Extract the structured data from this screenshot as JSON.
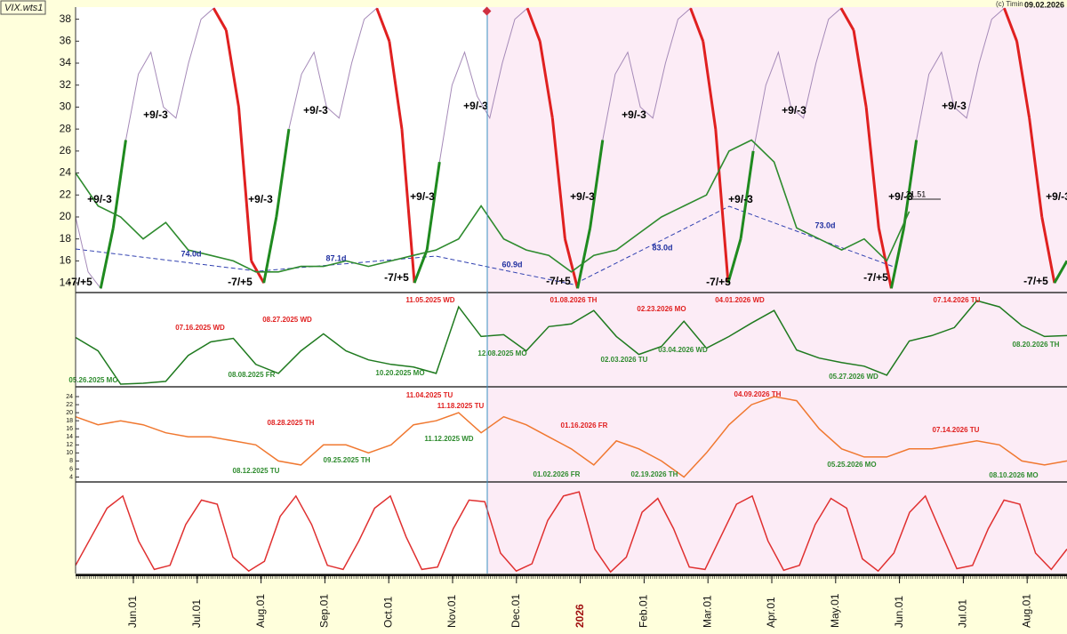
{
  "header": {
    "symbol": "VIX.wts1",
    "copyright": "(c) Timin",
    "date": "09.02.2026"
  },
  "time_axis": {
    "labels": [
      "Jun.01",
      "Jul.01",
      "Aug.01",
      "Sep.01",
      "Oct.01",
      "Nov.01",
      "Dec.01",
      "2026",
      "Feb.01",
      "Mar.01",
      "Apr.01",
      "May.01",
      "Jun.01",
      "Jul.01",
      "Aug.01"
    ]
  },
  "chart_data": [
    {
      "type": "line",
      "ylim": [
        13.2,
        39.1
      ],
      "yticks": [
        14,
        16,
        18,
        20,
        22,
        24,
        26,
        28,
        30,
        32,
        34,
        36,
        38
      ],
      "series": [
        {
          "color": "#a58ab8",
          "values": [
            20,
            15,
            13.5,
            19,
            27,
            33,
            35,
            30,
            29,
            34,
            38,
            39,
            37,
            30,
            16,
            14,
            20,
            28,
            33,
            35,
            30,
            29,
            34,
            38,
            39,
            36,
            28,
            14,
            17,
            25,
            32,
            35,
            31,
            29,
            34,
            38,
            39,
            36,
            29,
            18,
            13.5,
            19,
            27,
            33,
            35,
            30,
            29,
            34,
            38,
            39,
            36,
            28,
            14,
            18,
            26,
            32,
            35,
            30,
            29,
            34,
            38,
            39,
            37,
            30,
            19,
            13.5,
            19,
            27,
            33,
            35,
            30,
            29,
            34,
            38,
            39,
            36,
            29,
            20,
            14,
            16
          ]
        },
        {
          "color": "#2e8b2e",
          "values": [
            24,
            21,
            20,
            18,
            19.5,
            17,
            16.5,
            16,
            15,
            15,
            15.5,
            15.5,
            16,
            15.5,
            16,
            16.5,
            17,
            18,
            21,
            18,
            17,
            16.5,
            15,
            16.5,
            17,
            18.5,
            20,
            21,
            22,
            26,
            27,
            25,
            19,
            18,
            17,
            18,
            16,
            20.5,
            null,
            null,
            null,
            null,
            null,
            null,
            null
          ]
        }
      ],
      "annotations": [
        "+9/-3",
        "+9/-3",
        "+9/-3",
        "+9/-3",
        "+9/-3",
        "+9/-3",
        "+9/-3",
        "+9/-3",
        "+9/-3",
        "+9/-3",
        "+9/-3",
        "+9/-3",
        "+9/-3",
        "-7/+5",
        "-7/+5",
        "-7/+5",
        "-7/+5",
        "-7/+5",
        "-7/+5",
        "-7/+5",
        "74.0d",
        "87.1d",
        "60.9d",
        "83.0d",
        "73.0d",
        "21.51"
      ]
    },
    {
      "type": "line",
      "ylim": [
        0,
        100
      ],
      "series": [
        {
          "color": "#1f7a1f",
          "values": [
            54,
            39,
            2,
            3,
            5,
            34,
            49,
            53,
            24,
            14,
            39,
            58,
            39,
            29,
            24,
            21,
            14,
            88,
            55,
            57,
            39,
            66,
            69,
            84,
            55,
            35,
            44,
            72,
            42,
            55,
            70,
            84,
            40,
            31,
            26,
            22,
            12,
            50,
            56,
            65,
            95,
            88,
            67,
            55,
            56
          ]
        }
      ],
      "annotations": [
        {
          "text": "05.26.2025 MO",
          "color": "#2e8b2e"
        },
        {
          "text": "07.16.2025 WD",
          "color": "#e02020"
        },
        {
          "text": "08.08.2025 FR",
          "color": "#2e8b2e"
        },
        {
          "text": "08.27.2025 WD",
          "color": "#e02020"
        },
        {
          "text": "10.20.2025 MO",
          "color": "#2e8b2e"
        },
        {
          "text": "11.05.2025 WD",
          "color": "#e02020"
        },
        {
          "text": "12.08.2025 MO",
          "color": "#2e8b2e"
        },
        {
          "text": "01.08.2026 TH",
          "color": "#e02020"
        },
        {
          "text": "02.03.2026 TU",
          "color": "#2e8b2e"
        },
        {
          "text": "02.23.2026 MO",
          "color": "#e02020"
        },
        {
          "text": "03.04.2026 WD",
          "color": "#2e8b2e"
        },
        {
          "text": "04.01.2026 WD",
          "color": "#e02020"
        },
        {
          "text": "05.27.2026 WD",
          "color": "#2e8b2e"
        },
        {
          "text": "07.14.2026 TU",
          "color": "#e02020"
        },
        {
          "text": "08.20.2026 TH",
          "color": "#2e8b2e"
        }
      ]
    },
    {
      "type": "line",
      "ylim": [
        3,
        26
      ],
      "yticks": [
        4,
        6,
        8,
        10,
        12,
        14,
        16,
        18,
        20,
        22,
        24
      ],
      "series": [
        {
          "color": "#f07830",
          "values": [
            19,
            17,
            18,
            17,
            15,
            14,
            14,
            13,
            12,
            8,
            7,
            12,
            12,
            10,
            12,
            17,
            18,
            20,
            15,
            19,
            17,
            14,
            11,
            7,
            13,
            11,
            8,
            4,
            10,
            17,
            22,
            24,
            23,
            16,
            11,
            9,
            9,
            11,
            11,
            12,
            13,
            12,
            8,
            7,
            8
          ]
        }
      ],
      "annotations": [
        {
          "text": "08.12.2025 TU",
          "color": "#2e8b2e"
        },
        {
          "text": "08.28.2025 TH",
          "color": "#e02020"
        },
        {
          "text": "09.25.2025 TH",
          "color": "#2e8b2e"
        },
        {
          "text": "11.04.2025 TU",
          "color": "#e02020"
        },
        {
          "text": "11.18.2025 TU",
          "color": "#e02020"
        },
        {
          "text": "11.12.2025 WD",
          "color": "#2e8b2e"
        },
        {
          "text": "01.02.2026 FR",
          "color": "#2e8b2e"
        },
        {
          "text": "01.16.2026 FR",
          "color": "#e02020"
        },
        {
          "text": "02.19.2026 TH",
          "color": "#2e8b2e"
        },
        {
          "text": "04.09.2026 TH",
          "color": "#e02020"
        },
        {
          "text": "05.25.2026 MO",
          "color": "#2e8b2e"
        },
        {
          "text": "07.14.2026 TU",
          "color": "#e02020"
        },
        {
          "text": "08.10.2026 MO",
          "color": "#2e8b2e"
        }
      ]
    },
    {
      "type": "line",
      "ylim": [
        0,
        110
      ],
      "series": [
        {
          "color": "#e03030",
          "values": [
            10,
            45,
            80,
            95,
            40,
            5,
            10,
            60,
            90,
            85,
            20,
            3,
            15,
            70,
            95,
            60,
            10,
            5,
            40,
            80,
            95,
            45,
            5,
            8,
            55,
            90,
            88,
            25,
            3,
            12,
            65,
            95,
            100,
            30,
            2,
            20,
            75,
            92,
            55,
            8,
            5,
            45,
            85,
            95,
            40,
            4,
            10,
            60,
            92,
            80,
            18,
            3,
            25,
            75,
            95,
            50,
            6,
            10,
            55,
            90,
            85,
            25,
            5,
            30
          ]
        }
      ]
    }
  ]
}
